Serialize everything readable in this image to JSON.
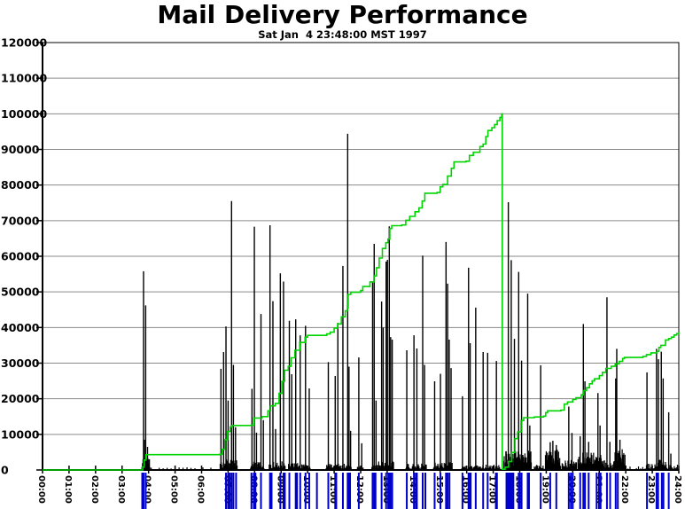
{
  "header": {
    "title": "Mail Delivery Performance",
    "subtitle": "Sat Jan  4 23:48:00 MST 1997"
  },
  "chart_data": {
    "type": "mixed",
    "title": "Mail Delivery Performance",
    "subtitle": "Sat Jan  4 23:48:00 MST 1997",
    "x_axis": {
      "min_hour": 0,
      "max_hour": 24,
      "tick_labels": [
        "00:00",
        "01:00",
        "02:00",
        "03:00",
        "04:00",
        "05:00",
        "06:00",
        "07:00",
        "08:00",
        "09:00",
        "10:00",
        "11:00",
        "12:00",
        "13:00",
        "14:00",
        "15:00",
        "16:00",
        "17:00",
        "18:00",
        "19:00",
        "20:00",
        "21:00",
        "22:00",
        "23:00",
        "24:00"
      ]
    },
    "y_axis": {
      "min": 0,
      "max": 120000,
      "step": 10000,
      "tick_labels": [
        "0",
        "10000",
        "20000",
        "30000",
        "40000",
        "50000",
        "60000",
        "70000",
        "80000",
        "90000",
        "100000",
        "110000",
        "120000"
      ]
    },
    "grid": {
      "horizontal": true,
      "vertical": false
    },
    "colors": {
      "spikes": "#000000",
      "cumulative": "#00d400",
      "events": "#0000cd",
      "grid": "#8a8a8a",
      "axis": "#000000",
      "background": "#ffffff"
    },
    "series": [
      {
        "name": "messages-per-interval",
        "type": "spikes",
        "color_key": "spikes",
        "points": [
          [
            3.81,
            55800
          ],
          [
            3.84,
            8500
          ],
          [
            3.89,
            46200
          ],
          [
            3.96,
            6500
          ],
          [
            4.03,
            3000
          ],
          [
            6.73,
            28400
          ],
          [
            6.83,
            33100
          ],
          [
            6.92,
            40300
          ],
          [
            7.0,
            19500
          ],
          [
            7.13,
            75500
          ],
          [
            7.2,
            29500
          ],
          [
            7.28,
            12000
          ],
          [
            7.9,
            22800
          ],
          [
            7.99,
            68300
          ],
          [
            8.07,
            10500
          ],
          [
            8.24,
            43800
          ],
          [
            8.33,
            14000
          ],
          [
            8.58,
            68700
          ],
          [
            8.69,
            47400
          ],
          [
            8.79,
            11500
          ],
          [
            8.97,
            55200
          ],
          [
            9.09,
            52900
          ],
          [
            9.31,
            41900
          ],
          [
            9.4,
            26900
          ],
          [
            9.55,
            42300
          ],
          [
            9.72,
            37800
          ],
          [
            9.92,
            40500
          ],
          [
            10.06,
            22900
          ],
          [
            10.78,
            30300
          ],
          [
            11.04,
            26400
          ],
          [
            11.14,
            41300
          ],
          [
            11.33,
            57300
          ],
          [
            11.51,
            94400
          ],
          [
            11.56,
            29000
          ],
          [
            11.62,
            11000
          ],
          [
            11.93,
            31600
          ],
          [
            12.04,
            7500
          ],
          [
            12.45,
            52800
          ],
          [
            12.51,
            63500
          ],
          [
            12.58,
            19500
          ],
          [
            12.79,
            47300
          ],
          [
            12.85,
            40000
          ],
          [
            12.96,
            58500
          ],
          [
            13.01,
            59000
          ],
          [
            13.08,
            68400
          ],
          [
            13.13,
            37300
          ],
          [
            13.19,
            36600
          ],
          [
            13.74,
            33600
          ],
          [
            14.01,
            37800
          ],
          [
            14.12,
            34100
          ],
          [
            14.34,
            60200
          ],
          [
            14.41,
            29500
          ],
          [
            14.79,
            24900
          ],
          [
            15.01,
            27000
          ],
          [
            15.22,
            64000
          ],
          [
            15.28,
            52300
          ],
          [
            15.34,
            36600
          ],
          [
            15.41,
            28600
          ],
          [
            15.84,
            20700
          ],
          [
            16.07,
            56800
          ],
          [
            16.13,
            35600
          ],
          [
            16.34,
            45600
          ],
          [
            16.62,
            33100
          ],
          [
            16.79,
            32900
          ],
          [
            17.12,
            30600
          ],
          [
            17.57,
            75200
          ],
          [
            17.68,
            58900
          ],
          [
            17.8,
            36800
          ],
          [
            17.96,
            55600
          ],
          [
            18.07,
            30700
          ],
          [
            18.3,
            49500
          ],
          [
            18.38,
            12500
          ],
          [
            18.79,
            29400
          ],
          [
            19.15,
            7800
          ],
          [
            19.25,
            8200
          ],
          [
            19.38,
            7000
          ],
          [
            19.85,
            17800
          ],
          [
            19.97,
            10400
          ],
          [
            20.28,
            9500
          ],
          [
            20.4,
            41000
          ],
          [
            20.46,
            24900
          ],
          [
            20.6,
            7900
          ],
          [
            20.95,
            21600
          ],
          [
            21.03,
            12500
          ],
          [
            21.29,
            48500
          ],
          [
            21.4,
            7900
          ],
          [
            21.62,
            25700
          ],
          [
            21.66,
            34000
          ],
          [
            21.78,
            8500
          ],
          [
            22.8,
            27400
          ],
          [
            23.16,
            34000
          ],
          [
            23.23,
            31100
          ],
          [
            23.34,
            33200
          ],
          [
            23.41,
            25700
          ],
          [
            23.62,
            16200
          ],
          [
            23.7,
            4600
          ]
        ]
      },
      {
        "name": "cumulative-messages",
        "type": "step-line",
        "color_key": "cumulative",
        "points": [
          [
            0,
            0
          ],
          [
            3.7,
            0
          ],
          [
            3.78,
            800
          ],
          [
            3.83,
            2800
          ],
          [
            3.9,
            4300
          ],
          [
            6.68,
            4400
          ],
          [
            6.77,
            5800
          ],
          [
            6.88,
            8500
          ],
          [
            6.98,
            10800
          ],
          [
            7.08,
            12100
          ],
          [
            7.15,
            12500
          ],
          [
            7.88,
            12600
          ],
          [
            7.97,
            14600
          ],
          [
            8.28,
            15000
          ],
          [
            8.5,
            16600
          ],
          [
            8.6,
            18000
          ],
          [
            8.78,
            18700
          ],
          [
            8.92,
            21500
          ],
          [
            9.03,
            24900
          ],
          [
            9.13,
            28000
          ],
          [
            9.27,
            29100
          ],
          [
            9.38,
            31500
          ],
          [
            9.52,
            33600
          ],
          [
            9.7,
            35800
          ],
          [
            9.9,
            37300
          ],
          [
            10.0,
            37800
          ],
          [
            10.72,
            38200
          ],
          [
            10.85,
            38700
          ],
          [
            11.0,
            39800
          ],
          [
            11.13,
            41000
          ],
          [
            11.27,
            43000
          ],
          [
            11.42,
            44700
          ],
          [
            11.5,
            45500
          ],
          [
            11.53,
            49300
          ],
          [
            11.63,
            49900
          ],
          [
            12.0,
            50400
          ],
          [
            12.08,
            51500
          ],
          [
            12.35,
            52800
          ],
          [
            12.5,
            54500
          ],
          [
            12.6,
            56800
          ],
          [
            12.7,
            59500
          ],
          [
            12.82,
            62200
          ],
          [
            12.95,
            63800
          ],
          [
            13.03,
            64800
          ],
          [
            13.1,
            67800
          ],
          [
            13.17,
            68600
          ],
          [
            13.55,
            68800
          ],
          [
            13.7,
            70100
          ],
          [
            13.85,
            71200
          ],
          [
            14.05,
            72500
          ],
          [
            14.2,
            73600
          ],
          [
            14.32,
            75500
          ],
          [
            14.42,
            77700
          ],
          [
            14.88,
            77900
          ],
          [
            15.0,
            79500
          ],
          [
            15.1,
            80200
          ],
          [
            15.28,
            82500
          ],
          [
            15.42,
            84700
          ],
          [
            15.52,
            86500
          ],
          [
            15.97,
            86700
          ],
          [
            16.1,
            88300
          ],
          [
            16.25,
            89200
          ],
          [
            16.5,
            90800
          ],
          [
            16.62,
            91500
          ],
          [
            16.72,
            93600
          ],
          [
            16.8,
            95300
          ],
          [
            16.95,
            96100
          ],
          [
            17.05,
            97000
          ],
          [
            17.15,
            98100
          ],
          [
            17.25,
            99000
          ],
          [
            17.32,
            99900
          ],
          [
            17.33,
            100000
          ],
          [
            17.34,
            200
          ],
          [
            17.45,
            800
          ],
          [
            17.58,
            2400
          ],
          [
            17.7,
            4900
          ],
          [
            17.82,
            8800
          ],
          [
            17.92,
            10700
          ],
          [
            18.05,
            13900
          ],
          [
            18.15,
            14700
          ],
          [
            18.55,
            14900
          ],
          [
            18.9,
            15100
          ],
          [
            18.98,
            16100
          ],
          [
            19.05,
            16600
          ],
          [
            19.55,
            16800
          ],
          [
            19.68,
            18500
          ],
          [
            19.8,
            19100
          ],
          [
            20.0,
            19800
          ],
          [
            20.12,
            20300
          ],
          [
            20.32,
            21100
          ],
          [
            20.42,
            22300
          ],
          [
            20.52,
            23100
          ],
          [
            20.63,
            24200
          ],
          [
            20.73,
            25000
          ],
          [
            20.82,
            25600
          ],
          [
            21.0,
            26500
          ],
          [
            21.12,
            27400
          ],
          [
            21.25,
            28500
          ],
          [
            21.45,
            29100
          ],
          [
            21.6,
            29800
          ],
          [
            21.75,
            30500
          ],
          [
            21.88,
            31300
          ],
          [
            21.95,
            31600
          ],
          [
            22.65,
            31900
          ],
          [
            22.78,
            32400
          ],
          [
            22.95,
            32900
          ],
          [
            23.18,
            33300
          ],
          [
            23.25,
            34400
          ],
          [
            23.32,
            35000
          ],
          [
            23.5,
            36500
          ],
          [
            23.62,
            36900
          ],
          [
            23.72,
            37300
          ],
          [
            23.82,
            37900
          ],
          [
            23.92,
            38300
          ],
          [
            24.0,
            38700
          ]
        ]
      },
      {
        "name": "delivery-events",
        "type": "rug",
        "color_key": "events",
        "times": [
          3.76,
          3.81,
          3.89,
          6.92,
          7.0,
          7.06,
          7.13,
          7.2,
          7.3,
          7.88,
          7.97,
          8.0,
          8.03,
          8.24,
          8.58,
          8.64,
          8.97,
          9.09,
          9.14,
          9.31,
          9.55,
          9.6,
          9.72,
          9.92,
          10.06,
          10.35,
          10.78,
          11.04,
          11.08,
          11.33,
          11.51,
          11.56,
          11.6,
          11.93,
          12.45,
          12.51,
          12.56,
          12.79,
          12.96,
          13.04,
          13.08,
          13.13,
          13.19,
          13.74,
          14.01,
          14.08,
          14.12,
          14.34,
          14.44,
          14.79,
          15.01,
          15.22,
          15.28,
          15.35,
          15.84,
          16.07,
          16.11,
          16.15,
          16.34,
          16.62,
          16.79,
          17.1,
          17.14,
          17.5,
          17.55,
          17.6,
          17.65,
          17.7,
          17.76,
          17.96,
          18.0,
          18.07,
          18.3,
          18.35,
          18.79,
          19.15,
          19.38,
          19.85,
          19.93,
          20.0,
          20.28,
          20.4,
          20.46,
          20.6,
          20.9,
          20.99,
          21.05,
          21.29,
          21.41,
          21.62,
          21.7,
          22.8,
          23.16,
          23.22,
          23.36,
          23.42,
          23.62
        ]
      }
    ],
    "noise_bands": [
      {
        "start": 4.1,
        "end": 6.6,
        "step": 0.15,
        "max": 800
      },
      {
        "start": 3.75,
        "end": 4.05,
        "step": 0.02,
        "max": 4000
      },
      {
        "start": 6.7,
        "end": 7.35,
        "step": 0.02,
        "max": 3000
      },
      {
        "start": 7.85,
        "end": 8.35,
        "step": 0.02,
        "max": 2500
      },
      {
        "start": 8.55,
        "end": 9.15,
        "step": 0.02,
        "max": 2500
      },
      {
        "start": 9.28,
        "end": 10.1,
        "step": 0.02,
        "max": 2000
      },
      {
        "start": 10.7,
        "end": 11.65,
        "step": 0.02,
        "max": 1800
      },
      {
        "start": 11.85,
        "end": 12.1,
        "step": 0.03,
        "max": 1200
      },
      {
        "start": 12.42,
        "end": 13.25,
        "step": 0.02,
        "max": 2500
      },
      {
        "start": 13.7,
        "end": 14.5,
        "step": 0.025,
        "max": 1800
      },
      {
        "start": 14.75,
        "end": 15.45,
        "step": 0.02,
        "max": 2200
      },
      {
        "start": 15.8,
        "end": 17.3,
        "step": 0.03,
        "max": 1500
      },
      {
        "start": 17.4,
        "end": 18.45,
        "step": 0.015,
        "max": 5500
      },
      {
        "start": 18.55,
        "end": 18.95,
        "step": 0.03,
        "max": 1500
      },
      {
        "start": 18.97,
        "end": 19.55,
        "step": 0.015,
        "max": 6000
      },
      {
        "start": 19.6,
        "end": 20.15,
        "step": 0.02,
        "max": 3000
      },
      {
        "start": 20.2,
        "end": 21.1,
        "step": 0.015,
        "max": 5000
      },
      {
        "start": 21.1,
        "end": 21.55,
        "step": 0.025,
        "max": 3000
      },
      {
        "start": 21.55,
        "end": 22.0,
        "step": 0.015,
        "max": 6000
      },
      {
        "start": 22.0,
        "end": 22.75,
        "step": 0.08,
        "max": 1000
      },
      {
        "start": 22.75,
        "end": 23.1,
        "step": 0.03,
        "max": 1800
      },
      {
        "start": 23.1,
        "end": 23.55,
        "step": 0.02,
        "max": 3000
      },
      {
        "start": 23.55,
        "end": 24.0,
        "step": 0.04,
        "max": 1500
      }
    ]
  }
}
